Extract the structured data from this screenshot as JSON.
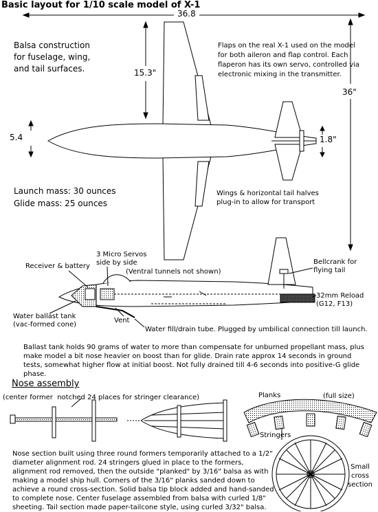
{
  "title": "Basic layout for 1/10 scale model of X-1",
  "dimensions": {
    "wingspan": "36.8",
    "semispan": "15.3\"",
    "length": "36\"",
    "fuselage_dia": "5.4",
    "tail_dia": "1.8\""
  },
  "notes": {
    "balsa": "Balsa construction\nfor fuselage, wing,\nand tail surfaces.",
    "flaps": "Flaps on the real X-1 used on the model for both aileron and flap control. Each flaperon has its own servo, controlled via electronic mixing in the transmitter.",
    "launch_mass": "Launch mass: 30 ounces",
    "glide_mass": "Glide mass: 25 ounces",
    "plugin": "Wings & horizontal tail halves\nplug-in to allow for transport",
    "servos": "3 Micro Servos\nside by side",
    "receiver": "Receiver & battery",
    "ventral": "(Ventral tunnels not shown)",
    "bellcrank": "Bellcrank for\nflying tail",
    "reload": "32mm Reload\n(G12, F13)",
    "ballast_tank": "Water ballast tank\n(vac-formed cone)",
    "vent": "Vent",
    "fill_tube": "Water fill/drain tube. Plugged by umbilical connection till launch.",
    "ballast_para": "Ballast tank holds 90 grams of water to more than compensate for unburned propellant mass, plus make model a bit nose heavier on boost than for glide.  Drain rate approx 14 seconds in ground tests, somewhat higher flow at initial boost.  Not fully drained till  4-6 seconds into positive-G  glide phase."
  },
  "nose": {
    "heading": "Nose assembly",
    "former_note": "(center former  notched 24 places for stringer clearance)",
    "planks": "Planks",
    "full_size": "(full size)",
    "stringers": "Stringers",
    "small_cross": "Small\ncross\nsection",
    "para": "Nose section built using three round formers temporarily attached to a 1/2\" diameter alignment rod. 24 stringers glued in place to the formers, alignment rod removed, then the outside \"planked\" by 3/16\" balsa as with making a model ship hull.  Corners of the 3/16\" planks sanded down to achieve a round cross-section. Solid balsa tip block added and hand-sanded to complete nose.  Center fuselage assembled from balsa with curled 1/8\" sheeting. Tail section made paper-tailcone style, using curled 3/32\" balsa."
  },
  "colors": {
    "ink": "#000000",
    "paper": "#ffffff"
  }
}
